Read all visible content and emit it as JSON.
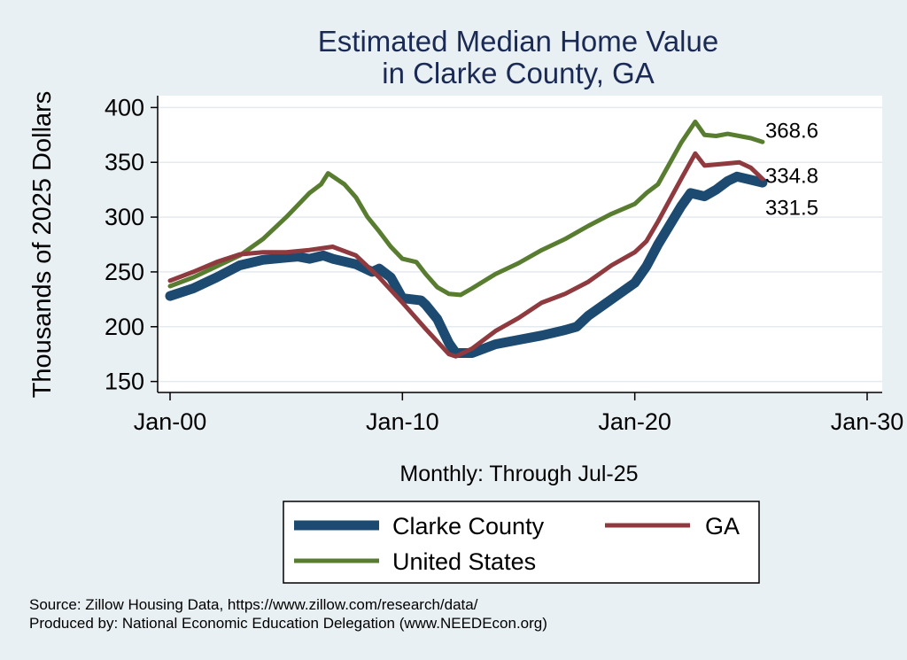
{
  "chart_data": {
    "type": "line",
    "title_line1": "Estimated Median Home Value",
    "title_line2": "in Clarke County, GA",
    "ylabel": "Thousands of 2025 Dollars",
    "xlabel": "Monthly: Through Jul-25",
    "ylim": [
      140,
      410
    ],
    "yticks": [
      150,
      200,
      250,
      300,
      350,
      400
    ],
    "xlim": [
      2000,
      2030
    ],
    "xticks": [
      {
        "x": 2000,
        "label": "Jan-00"
      },
      {
        "x": 2010,
        "label": "Jan-10"
      },
      {
        "x": 2020,
        "label": "Jan-20"
      },
      {
        "x": 2030,
        "label": "Jan-30"
      }
    ],
    "grid": true,
    "legend_position": "bottom",
    "series": [
      {
        "name": "Clarke County",
        "color": "#1c4a70",
        "end_label": "331.5",
        "points": [
          [
            2000,
            228
          ],
          [
            2001,
            235
          ],
          [
            2002,
            245
          ],
          [
            2003,
            256
          ],
          [
            2004,
            261
          ],
          [
            2005,
            263
          ],
          [
            2005.5,
            264
          ],
          [
            2006,
            262
          ],
          [
            2006.6,
            265
          ],
          [
            2007,
            262
          ],
          [
            2008,
            257
          ],
          [
            2008.7,
            250
          ],
          [
            2009,
            253
          ],
          [
            2009.5,
            245
          ],
          [
            2010,
            226
          ],
          [
            2010.8,
            224
          ],
          [
            2011,
            220
          ],
          [
            2011.5,
            207
          ],
          [
            2012,
            185
          ],
          [
            2012.3,
            176
          ],
          [
            2013,
            176
          ],
          [
            2014,
            184
          ],
          [
            2015,
            188
          ],
          [
            2016,
            192
          ],
          [
            2017,
            197
          ],
          [
            2017.5,
            200
          ],
          [
            2018,
            210
          ],
          [
            2019,
            225
          ],
          [
            2020,
            240
          ],
          [
            2020.5,
            255
          ],
          [
            2021,
            275
          ],
          [
            2022,
            310
          ],
          [
            2022.4,
            322
          ],
          [
            2023,
            319
          ],
          [
            2023.5,
            325
          ],
          [
            2024,
            333
          ],
          [
            2024.4,
            337
          ],
          [
            2025,
            334
          ],
          [
            2025.5,
            331.5
          ]
        ]
      },
      {
        "name": "GA",
        "color": "#8e3a3f",
        "end_label": "334.8",
        "points": [
          [
            2000,
            242
          ],
          [
            2001,
            250
          ],
          [
            2002,
            259
          ],
          [
            2003,
            266
          ],
          [
            2004,
            268
          ],
          [
            2005,
            268
          ],
          [
            2006,
            270
          ],
          [
            2007,
            273
          ],
          [
            2008,
            265
          ],
          [
            2009,
            245
          ],
          [
            2010,
            222
          ],
          [
            2011,
            198
          ],
          [
            2012,
            175
          ],
          [
            2012.3,
            173
          ],
          [
            2013,
            180
          ],
          [
            2014,
            196
          ],
          [
            2015,
            208
          ],
          [
            2016,
            222
          ],
          [
            2017,
            230
          ],
          [
            2018,
            241
          ],
          [
            2019,
            256
          ],
          [
            2020,
            268
          ],
          [
            2020.5,
            278
          ],
          [
            2021,
            296
          ],
          [
            2022,
            335
          ],
          [
            2022.6,
            358
          ],
          [
            2023,
            347
          ],
          [
            2024,
            349
          ],
          [
            2024.5,
            350
          ],
          [
            2025,
            345
          ],
          [
            2025.5,
            334.8
          ]
        ]
      },
      {
        "name": "United States",
        "color": "#587d30",
        "end_label": "368.6",
        "points": [
          [
            2000,
            237
          ],
          [
            2001,
            245
          ],
          [
            2002,
            255
          ],
          [
            2003,
            265
          ],
          [
            2004,
            280
          ],
          [
            2005,
            300
          ],
          [
            2006,
            322
          ],
          [
            2006.5,
            330
          ],
          [
            2006.8,
            340
          ],
          [
            2007.5,
            330
          ],
          [
            2008,
            318
          ],
          [
            2008.5,
            300
          ],
          [
            2009,
            287
          ],
          [
            2009.5,
            273
          ],
          [
            2010,
            262
          ],
          [
            2010.6,
            259
          ],
          [
            2011,
            248
          ],
          [
            2011.5,
            236
          ],
          [
            2012,
            230
          ],
          [
            2012.5,
            229
          ],
          [
            2013,
            235
          ],
          [
            2014,
            248
          ],
          [
            2015,
            258
          ],
          [
            2016,
            270
          ],
          [
            2017,
            280
          ],
          [
            2018,
            292
          ],
          [
            2019,
            303
          ],
          [
            2020,
            312
          ],
          [
            2020.5,
            322
          ],
          [
            2021,
            330
          ],
          [
            2022,
            368
          ],
          [
            2022.6,
            387
          ],
          [
            2023,
            375
          ],
          [
            2023.5,
            374
          ],
          [
            2024,
            376
          ],
          [
            2025,
            372
          ],
          [
            2025.5,
            368.6
          ]
        ]
      }
    ]
  },
  "source_line": "Source: Zillow Housing Data, https://www.zillow.com/research/data/",
  "produced_line": "Produced by: National Economic Education Delegation (www.NEEDEcon.org)"
}
